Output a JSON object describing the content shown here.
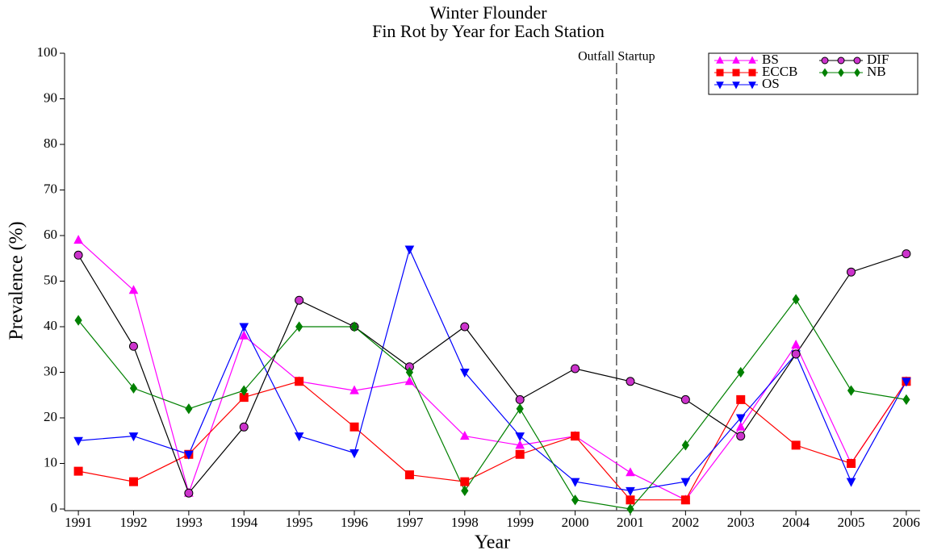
{
  "chart_data": {
    "type": "line",
    "title": "Winter Flounder",
    "subtitle": "Fin Rot by Year for Each Station",
    "x_label": "Year",
    "y_label": "Prevalence (%)",
    "x": [
      1991,
      1992,
      1993,
      1994,
      1995,
      1996,
      1997,
      1998,
      1999,
      2000,
      2001,
      2002,
      2003,
      2004,
      2005,
      2006
    ],
    "series": [
      {
        "name": "BS",
        "color": "#ff00ff",
        "marker": "triangle-up",
        "values": [
          59,
          48,
          3.5,
          38,
          28,
          26,
          28,
          16,
          14,
          16,
          8,
          2,
          18,
          36,
          10,
          28
        ]
      },
      {
        "name": "ECCB",
        "color": "#ff0000",
        "marker": "square",
        "values": [
          8.3,
          6,
          12,
          24.5,
          28,
          18,
          7.5,
          6,
          12,
          16,
          2,
          2,
          24,
          14,
          10,
          28
        ]
      },
      {
        "name": "OS",
        "color": "#0000ff",
        "marker": "triangle-down",
        "values": [
          15,
          16,
          12,
          40,
          16,
          12.3,
          57,
          30,
          16,
          6,
          4,
          6,
          20,
          34,
          6,
          28
        ]
      },
      {
        "name": "DIF",
        "color": "#000000",
        "marker": "circle",
        "marker_fill": "#cc33cc",
        "values": [
          55.7,
          35.7,
          3.5,
          18,
          45.8,
          40,
          31.2,
          40,
          24,
          30.8,
          28,
          24,
          16,
          34,
          52,
          56
        ]
      },
      {
        "name": "NB",
        "color": "#008000",
        "marker": "diamond",
        "values": [
          41.4,
          26.5,
          22,
          26,
          40,
          40,
          30,
          4,
          22,
          2,
          0,
          14,
          30,
          46,
          26,
          24
        ]
      }
    ],
    "annotation": {
      "text": "Outfall Startup",
      "x": 2000.75
    },
    "xlim": [
      1990.75,
      2006.25
    ],
    "xticks": [
      1991,
      1992,
      1993,
      1994,
      1995,
      1996,
      1997,
      1998,
      1999,
      2000,
      2001,
      2002,
      2003,
      2004,
      2005,
      2006
    ],
    "ylim": [
      0,
      100
    ],
    "yticks": [
      0,
      10,
      20,
      30,
      40,
      50,
      60,
      70,
      80,
      90,
      100
    ],
    "legend": "upper right"
  }
}
